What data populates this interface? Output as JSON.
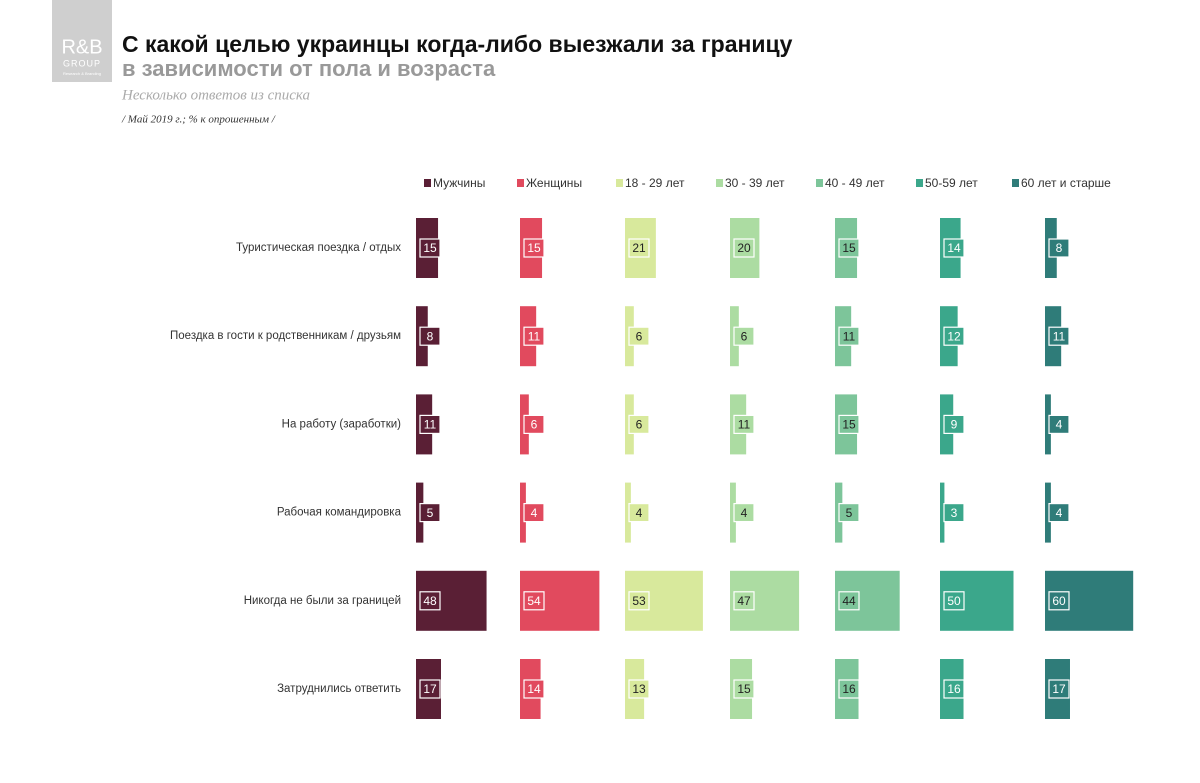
{
  "logo": {
    "name": "R&B",
    "group": "GROUP",
    "tagline": "Research & Branding"
  },
  "chart_data": {
    "type": "bar",
    "title": "С какой целью украинцы когда-либо выезжали за границу",
    "subtitle": "в зависимости от пола и возраста",
    "note": "Несколько ответов из списка",
    "source": "/ Май 2019 г.; % к опрошенным /",
    "categories": [
      "Туристическая поездка / отдых",
      "Поездка в гости к родственникам / друзьям",
      "На работу (заработки)",
      "Рабочая командировка",
      "Никогда не были за границей",
      "Затруднились ответить"
    ],
    "series": [
      {
        "name": "Мужчины",
        "color": "#5a1f35",
        "values": [
          15,
          8,
          11,
          5,
          48,
          17
        ]
      },
      {
        "name": "Женщины",
        "color": "#e14a5e",
        "values": [
          15,
          11,
          6,
          4,
          54,
          14
        ]
      },
      {
        "name": "18 - 29 лет",
        "color": "#d8e99c",
        "values": [
          21,
          6,
          6,
          4,
          53,
          13
        ]
      },
      {
        "name": "30 - 39 лет",
        "color": "#acdca2",
        "values": [
          20,
          6,
          11,
          4,
          47,
          15
        ]
      },
      {
        "name": "40 - 49 лет",
        "color": "#7dc59a",
        "values": [
          15,
          11,
          15,
          5,
          44,
          16
        ]
      },
      {
        "name": "50-59 лет",
        "color": "#3ba78b",
        "values": [
          14,
          12,
          9,
          3,
          50,
          16
        ]
      },
      {
        "name": "60 лет и старше",
        "color": "#2f7c79",
        "values": [
          8,
          11,
          4,
          4,
          60,
          17
        ]
      }
    ]
  }
}
